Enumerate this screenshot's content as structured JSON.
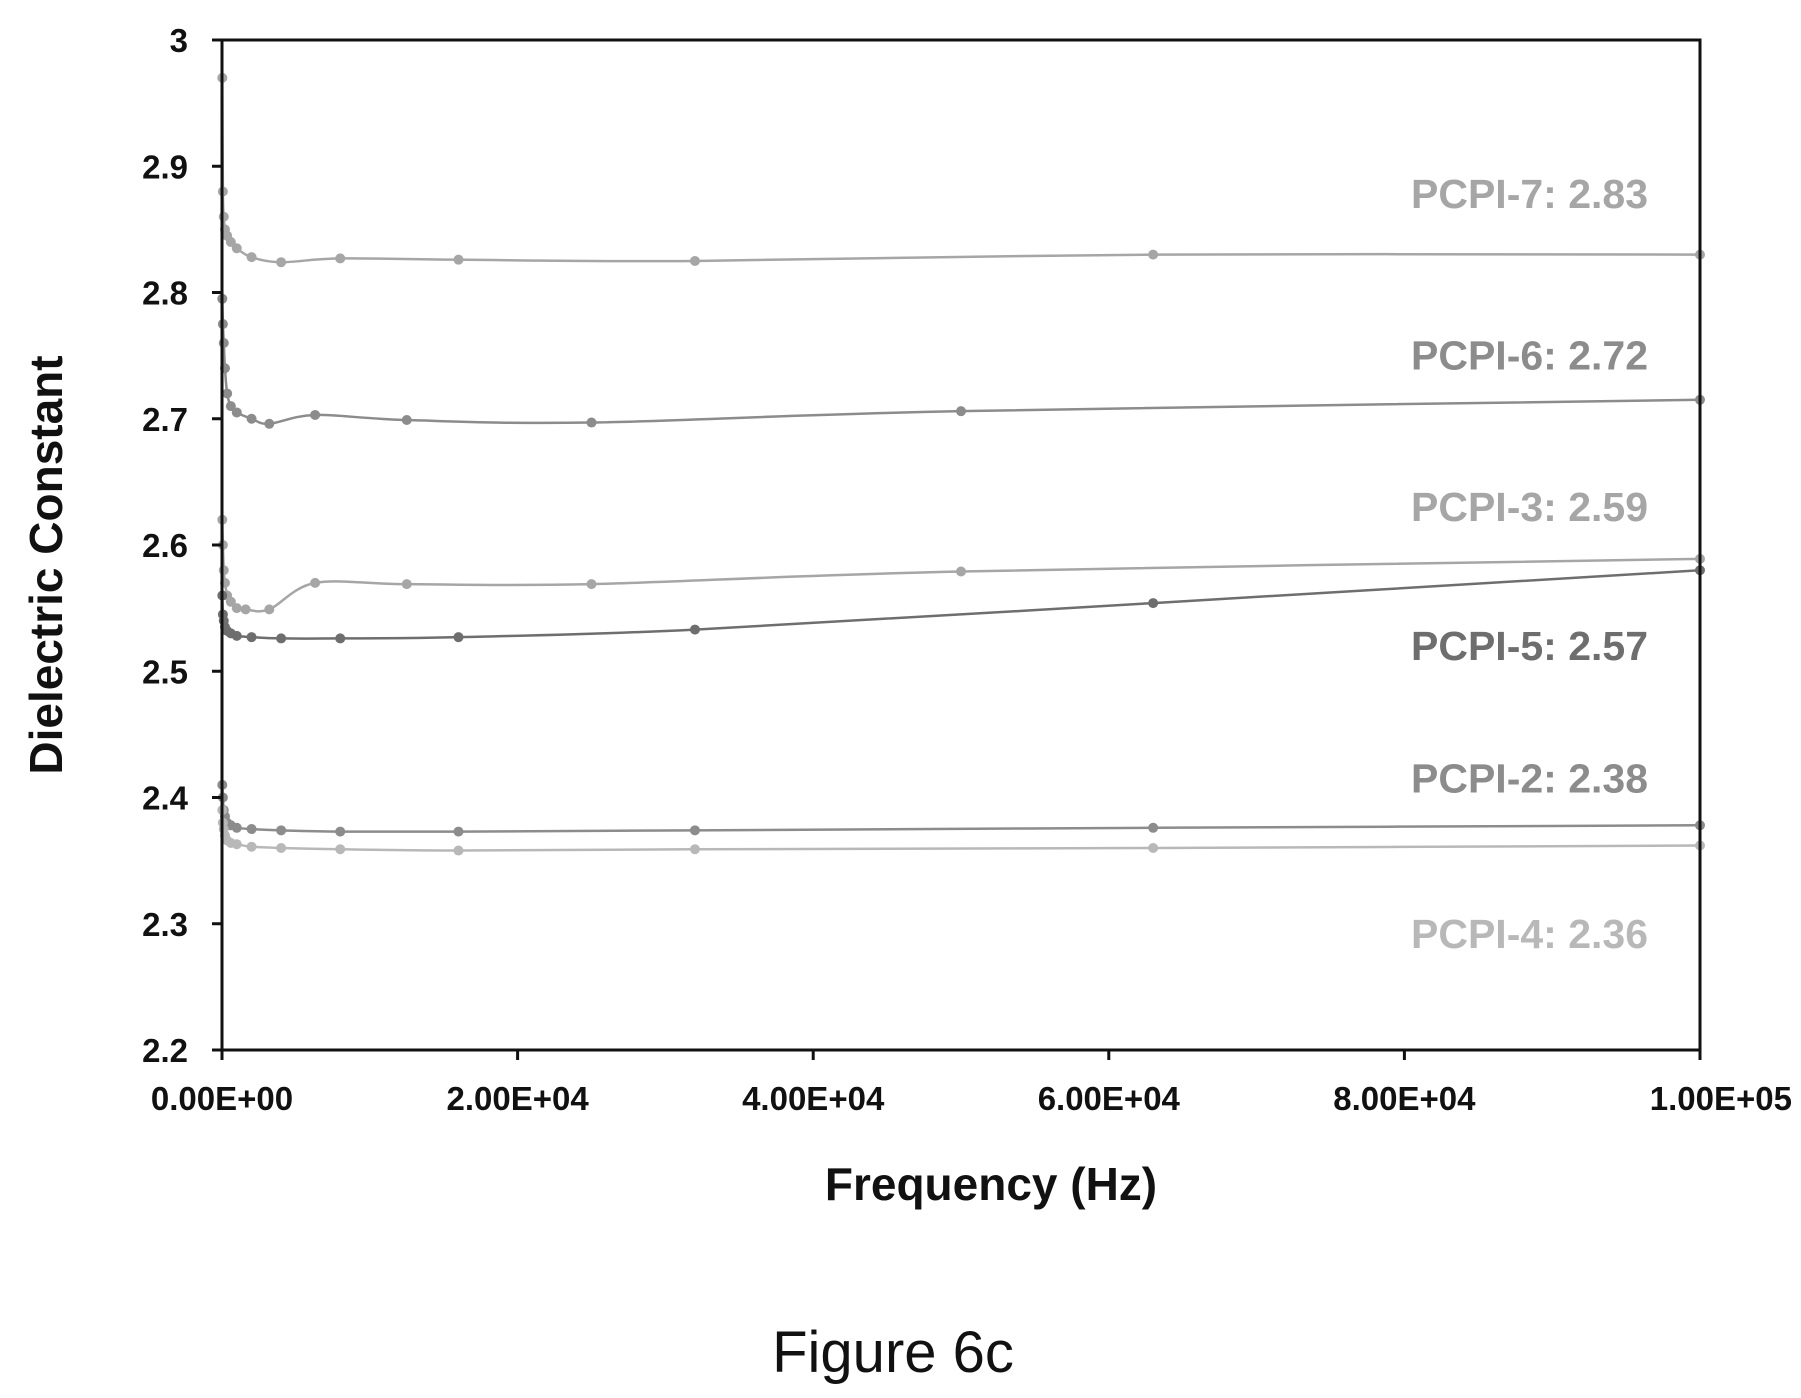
{
  "caption": "Figure 6c",
  "colors": {
    "axis": "#111111",
    "text": "#111111",
    "dark_series": "#6e6e6e",
    "mid_series": "#8c8c8c",
    "light_series": "#a6a6a6",
    "lightest_series": "#b8b8b8"
  },
  "chart_data": {
    "type": "scatter",
    "mode": "markers+smooth-lines",
    "title": "",
    "xlabel": "Frequency (Hz)",
    "ylabel": "Dielectric Constant",
    "xlim": [
      0,
      100000
    ],
    "ylim": [
      2.2,
      3.0
    ],
    "x_tick_labels": [
      "0.00E+00",
      "2.00E+04",
      "4.00E+04",
      "6.00E+04",
      "8.00E+04",
      "1.00E+05"
    ],
    "x_ticks": [
      0,
      20000,
      40000,
      60000,
      80000,
      100000
    ],
    "y_tick_labels": [
      "2.2",
      "2.3",
      "2.4",
      "2.5",
      "2.6",
      "2.7",
      "2.8",
      "2.9",
      "3"
    ],
    "y_ticks": [
      2.2,
      2.3,
      2.4,
      2.5,
      2.6,
      2.7,
      2.8,
      2.9,
      3.0
    ],
    "grid": false,
    "legend": "none",
    "series": [
      {
        "name": "PCPI-7: 2.83",
        "color": "#a6a6a6",
        "label_y": 2.878,
        "points": [
          [
            20,
            2.97
          ],
          [
            60,
            2.88
          ],
          [
            120,
            2.86
          ],
          [
            200,
            2.85
          ],
          [
            350,
            2.845
          ],
          [
            600,
            2.84
          ],
          [
            1000,
            2.835
          ],
          [
            2000,
            2.828
          ],
          [
            4000,
            2.824
          ],
          [
            8000,
            2.827
          ],
          [
            16000,
            2.826
          ],
          [
            32000,
            2.825
          ],
          [
            63000,
            2.83
          ],
          [
            100000,
            2.83
          ]
        ]
      },
      {
        "name": "PCPI-6: 2.72",
        "color": "#8c8c8c",
        "label_y": 2.75,
        "points": [
          [
            20,
            2.795
          ],
          [
            60,
            2.775
          ],
          [
            120,
            2.76
          ],
          [
            200,
            2.74
          ],
          [
            350,
            2.72
          ],
          [
            600,
            2.71
          ],
          [
            1000,
            2.705
          ],
          [
            2000,
            2.7
          ],
          [
            3200,
            2.696
          ],
          [
            6300,
            2.703
          ],
          [
            12500,
            2.699
          ],
          [
            25000,
            2.697
          ],
          [
            50000,
            2.706
          ],
          [
            100000,
            2.715
          ]
        ]
      },
      {
        "name": "PCPI-3: 2.59",
        "color": "#a6a6a6",
        "label_y": 2.63,
        "points": [
          [
            20,
            2.62
          ],
          [
            60,
            2.6
          ],
          [
            120,
            2.58
          ],
          [
            200,
            2.57
          ],
          [
            350,
            2.56
          ],
          [
            600,
            2.555
          ],
          [
            1000,
            2.55
          ],
          [
            1600,
            2.549
          ],
          [
            3200,
            2.549
          ],
          [
            6300,
            2.57
          ],
          [
            12500,
            2.569
          ],
          [
            25000,
            2.569
          ],
          [
            50000,
            2.579
          ],
          [
            100000,
            2.589
          ]
        ]
      },
      {
        "name": "PCPI-5: 2.57",
        "color": "#6e6e6e",
        "label_y": 2.52,
        "points": [
          [
            20,
            2.56
          ],
          [
            60,
            2.545
          ],
          [
            120,
            2.54
          ],
          [
            200,
            2.535
          ],
          [
            350,
            2.532
          ],
          [
            600,
            2.53
          ],
          [
            1000,
            2.528
          ],
          [
            2000,
            2.527
          ],
          [
            4000,
            2.526
          ],
          [
            8000,
            2.526
          ],
          [
            16000,
            2.527
          ],
          [
            32000,
            2.533
          ],
          [
            63000,
            2.554
          ],
          [
            100000,
            2.58
          ]
        ]
      },
      {
        "name": "PCPI-2: 2.38",
        "color": "#8c8c8c",
        "label_y": 2.415,
        "points": [
          [
            20,
            2.41
          ],
          [
            60,
            2.4
          ],
          [
            120,
            2.39
          ],
          [
            200,
            2.385
          ],
          [
            350,
            2.38
          ],
          [
            600,
            2.378
          ],
          [
            1000,
            2.376
          ],
          [
            2000,
            2.375
          ],
          [
            4000,
            2.374
          ],
          [
            8000,
            2.373
          ],
          [
            16000,
            2.373
          ],
          [
            32000,
            2.374
          ],
          [
            63000,
            2.376
          ],
          [
            100000,
            2.378
          ]
        ]
      },
      {
        "name": "PCPI-4: 2.36",
        "color": "#b8b8b8",
        "label_y": 2.292,
        "points": [
          [
            20,
            2.39
          ],
          [
            60,
            2.38
          ],
          [
            120,
            2.375
          ],
          [
            200,
            2.37
          ],
          [
            350,
            2.366
          ],
          [
            600,
            2.364
          ],
          [
            1000,
            2.363
          ],
          [
            2000,
            2.361
          ],
          [
            4000,
            2.36
          ],
          [
            8000,
            2.359
          ],
          [
            16000,
            2.358
          ],
          [
            32000,
            2.359
          ],
          [
            63000,
            2.36
          ],
          [
            100000,
            2.362
          ]
        ]
      }
    ]
  }
}
